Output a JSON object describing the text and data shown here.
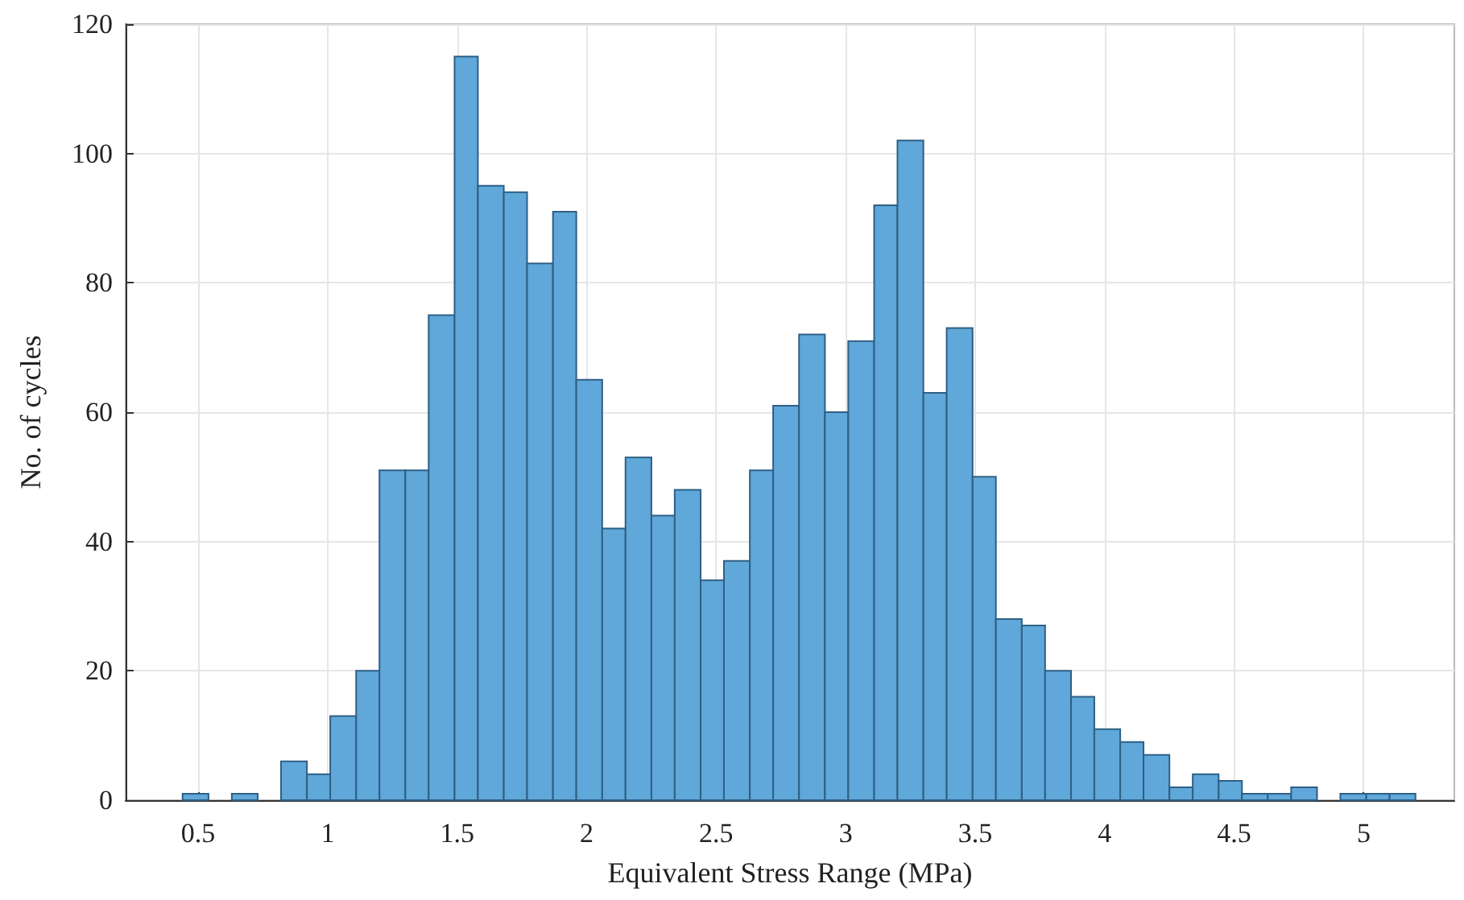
{
  "chart_data": {
    "type": "histogram",
    "xlabel": "Equivalent Stress Range (MPa)",
    "ylabel": "No. of cycles",
    "bins": [
      0.44,
      0.54,
      0.63,
      0.73,
      0.82,
      0.92,
      1.01,
      1.11,
      1.2,
      1.3,
      1.39,
      1.49,
      1.58,
      1.68,
      1.77,
      1.87,
      1.96,
      2.06,
      2.15,
      2.25,
      2.34,
      2.44,
      2.53,
      2.63,
      2.72,
      2.82,
      2.92,
      3.01,
      3.11,
      3.2,
      3.3,
      3.39,
      3.49,
      3.58,
      3.68,
      3.77,
      3.87,
      3.96,
      4.06,
      4.15,
      4.25,
      4.34,
      4.44,
      4.53,
      4.63,
      4.72,
      4.82,
      4.91,
      5.01,
      5.1,
      5.2
    ],
    "values": [
      1,
      0,
      1,
      0,
      6,
      4,
      13,
      20,
      51,
      51,
      75,
      115,
      95,
      94,
      83,
      91,
      65,
      42,
      53,
      44,
      48,
      34,
      37,
      51,
      61,
      72,
      60,
      71,
      92,
      102,
      63,
      73,
      50,
      28,
      27,
      20,
      16,
      11,
      9,
      7,
      2,
      4,
      3,
      1,
      1,
      2,
      0,
      1,
      1,
      1
    ],
    "color": "#5fa8d9",
    "xlim": [
      0.22,
      5.35
    ],
    "xticks": [
      0.5,
      1,
      1.5,
      2,
      2.5,
      3,
      3.5,
      4,
      4.5,
      5
    ],
    "ylim": [
      0,
      120
    ],
    "yticks": [
      0,
      20,
      40,
      60,
      80,
      100,
      120
    ],
    "grid": true
  }
}
